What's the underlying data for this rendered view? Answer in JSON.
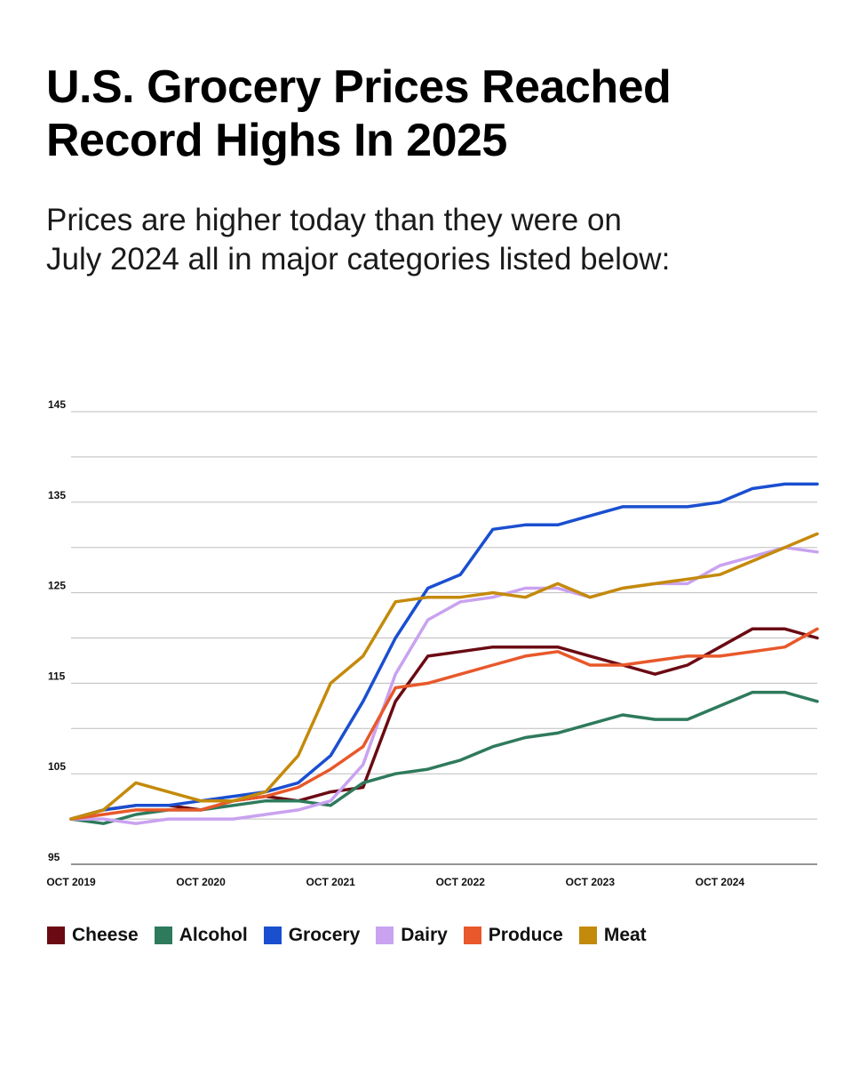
{
  "header": {
    "title_line1": "U.S. Grocery Prices Reached",
    "title_line2": "Record Highs In 2025",
    "subtitle_line1": "Prices are higher today than they were on",
    "subtitle_line2": "July 2024 all in major categories listed below:"
  },
  "chart_data": {
    "type": "line",
    "title": "U.S. Grocery Prices Reached Record Highs In 2025",
    "subtitle": "Prices are higher today than they were on July 2024 all in major categories listed below:",
    "x_tick_labels": [
      "OCT 2019",
      "OCT 2020",
      "OCT 2021",
      "OCT 2022",
      "OCT 2023",
      "OCT 2024"
    ],
    "y_tick_labels": [
      "95",
      "105",
      "115",
      "125",
      "135",
      "145"
    ],
    "ylim": [
      95,
      145
    ],
    "xlim": [
      "2019-10",
      "2025-07"
    ],
    "gridlines_every": 5,
    "legend_position": "bottom",
    "x": [
      "2019-10",
      "2020-01",
      "2020-04",
      "2020-07",
      "2020-10",
      "2021-01",
      "2021-04",
      "2021-07",
      "2021-10",
      "2022-01",
      "2022-04",
      "2022-07",
      "2022-10",
      "2023-01",
      "2023-04",
      "2023-07",
      "2023-10",
      "2024-01",
      "2024-04",
      "2024-07",
      "2024-10",
      "2025-01",
      "2025-04",
      "2025-07"
    ],
    "series": [
      {
        "name": "Cheese",
        "color": "#6b0a13",
        "values": [
          100,
          101,
          101.5,
          101.5,
          101,
          102,
          102.5,
          102,
          103,
          103.5,
          113,
          118,
          118.5,
          119,
          119,
          119,
          118,
          117,
          116,
          117,
          119,
          121,
          121,
          120
        ]
      },
      {
        "name": "Alcohol",
        "color": "#2e7a5c",
        "values": [
          100,
          99.5,
          100.5,
          101,
          101,
          101.5,
          102,
          102,
          101.5,
          104,
          105,
          105.5,
          106.5,
          108,
          109,
          109.5,
          110.5,
          111.5,
          111,
          111,
          112.5,
          114,
          114,
          113
        ]
      },
      {
        "name": "Grocery",
        "color": "#1a4fd0",
        "values": [
          100,
          101,
          101.5,
          101.5,
          102,
          102.5,
          103,
          104,
          107,
          113,
          120,
          125.5,
          127,
          132,
          132.5,
          132.5,
          133.5,
          134.5,
          134.5,
          134.5,
          135,
          136.5,
          137,
          137
        ]
      },
      {
        "name": "Dairy",
        "color": "#c9a2f0",
        "values": [
          100,
          100,
          99.5,
          100,
          100,
          100,
          100.5,
          101,
          102,
          106,
          116,
          122,
          124,
          124.5,
          125.5,
          125.5,
          124.5,
          125.5,
          126,
          126,
          128,
          129,
          130,
          129.5
        ]
      },
      {
        "name": "Produce",
        "color": "#e8582a",
        "values": [
          100,
          100.5,
          101,
          101,
          101,
          102,
          102.5,
          103.5,
          105.5,
          108,
          114.5,
          115,
          116,
          117,
          118,
          118.5,
          117,
          117,
          117.5,
          118,
          118,
          118.5,
          119,
          121
        ]
      },
      {
        "name": "Meat",
        "color": "#c48a0b",
        "values": [
          100,
          101,
          104,
          103,
          102,
          102,
          103,
          107,
          115,
          118,
          124,
          124.5,
          124.5,
          125,
          124.5,
          126,
          124.5,
          125.5,
          126,
          126.5,
          127,
          128.5,
          130,
          131.5
        ]
      }
    ]
  },
  "legend": {
    "items": [
      {
        "label": "Cheese",
        "color": "#6b0a13"
      },
      {
        "label": "Alcohol",
        "color": "#2e7a5c"
      },
      {
        "label": "Grocery",
        "color": "#1a4fd0"
      },
      {
        "label": "Dairy",
        "color": "#c9a2f0"
      },
      {
        "label": "Produce",
        "color": "#e8582a"
      },
      {
        "label": "Meat",
        "color": "#c48a0b"
      }
    ]
  }
}
